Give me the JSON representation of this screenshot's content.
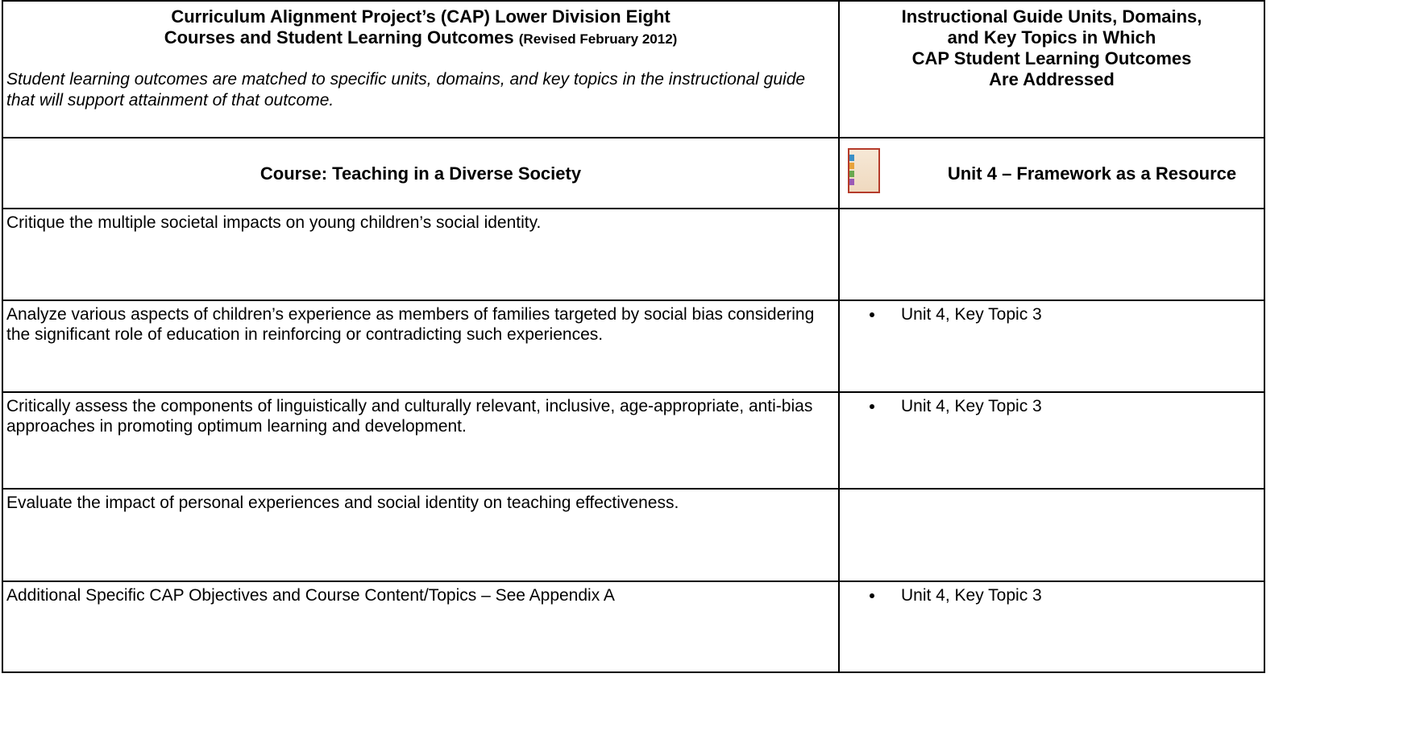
{
  "header": {
    "left_title_lines": [
      "Curriculum Alignment Project’s (CAP) Lower Division Eight",
      "Courses and Student Learning Outcomes"
    ],
    "left_revised": "(Revised February 2012)",
    "left_note": "Student learning outcomes are matched to specific units, domains, and key topics in the instructional guide that will support attainment of that outcome.",
    "right_title_lines": [
      "Instructional Guide Units, Domains,",
      "and Key Topics in Which",
      "CAP Student Learning Outcomes",
      "Are Addressed"
    ]
  },
  "course_row": {
    "course": "Course:  Teaching in a Diverse Society",
    "unit": "Unit 4 – Framework as a Resource"
  },
  "rows": [
    {
      "outcome": "Critique the multiple societal impacts on young children’s social identity.",
      "topics": []
    },
    {
      "outcome": "Analyze various aspects of children’s experience as members of families targeted by social bias considering the significant role of education in reinforcing or contradicting such experiences.",
      "topics": [
        "Unit 4, Key Topic 3"
      ]
    },
    {
      "outcome": "Critically assess the components of linguistically and culturally relevant, inclusive, age-appropriate, anti-bias approaches in promoting optimum learning and development.",
      "topics": [
        "Unit 4, Key Topic 3"
      ]
    },
    {
      "outcome": "Evaluate the impact of personal experiences and social identity on teaching effectiveness.",
      "topics": []
    },
    {
      "outcome": "Additional Specific CAP Objectives and Course Content/Topics – See Appendix A",
      "topics": [
        "Unit 4, Key Topic 3"
      ]
    }
  ]
}
